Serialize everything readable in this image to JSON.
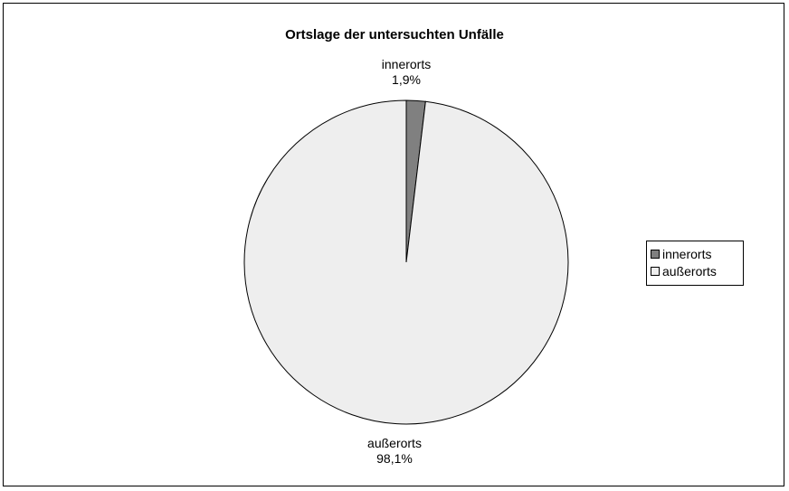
{
  "chart_data": {
    "type": "pie",
    "title": "Ortslage der untersuchten Unfälle",
    "slices": [
      {
        "name": "innerorts",
        "value": 1.9,
        "label": "1,9%",
        "color": "#808080"
      },
      {
        "name": "außerorts",
        "value": 98.1,
        "label": "98,1%",
        "color": "#eeeeee"
      }
    ],
    "legend": {
      "placement": "right",
      "entries": [
        "innerorts",
        "außerorts"
      ]
    }
  }
}
